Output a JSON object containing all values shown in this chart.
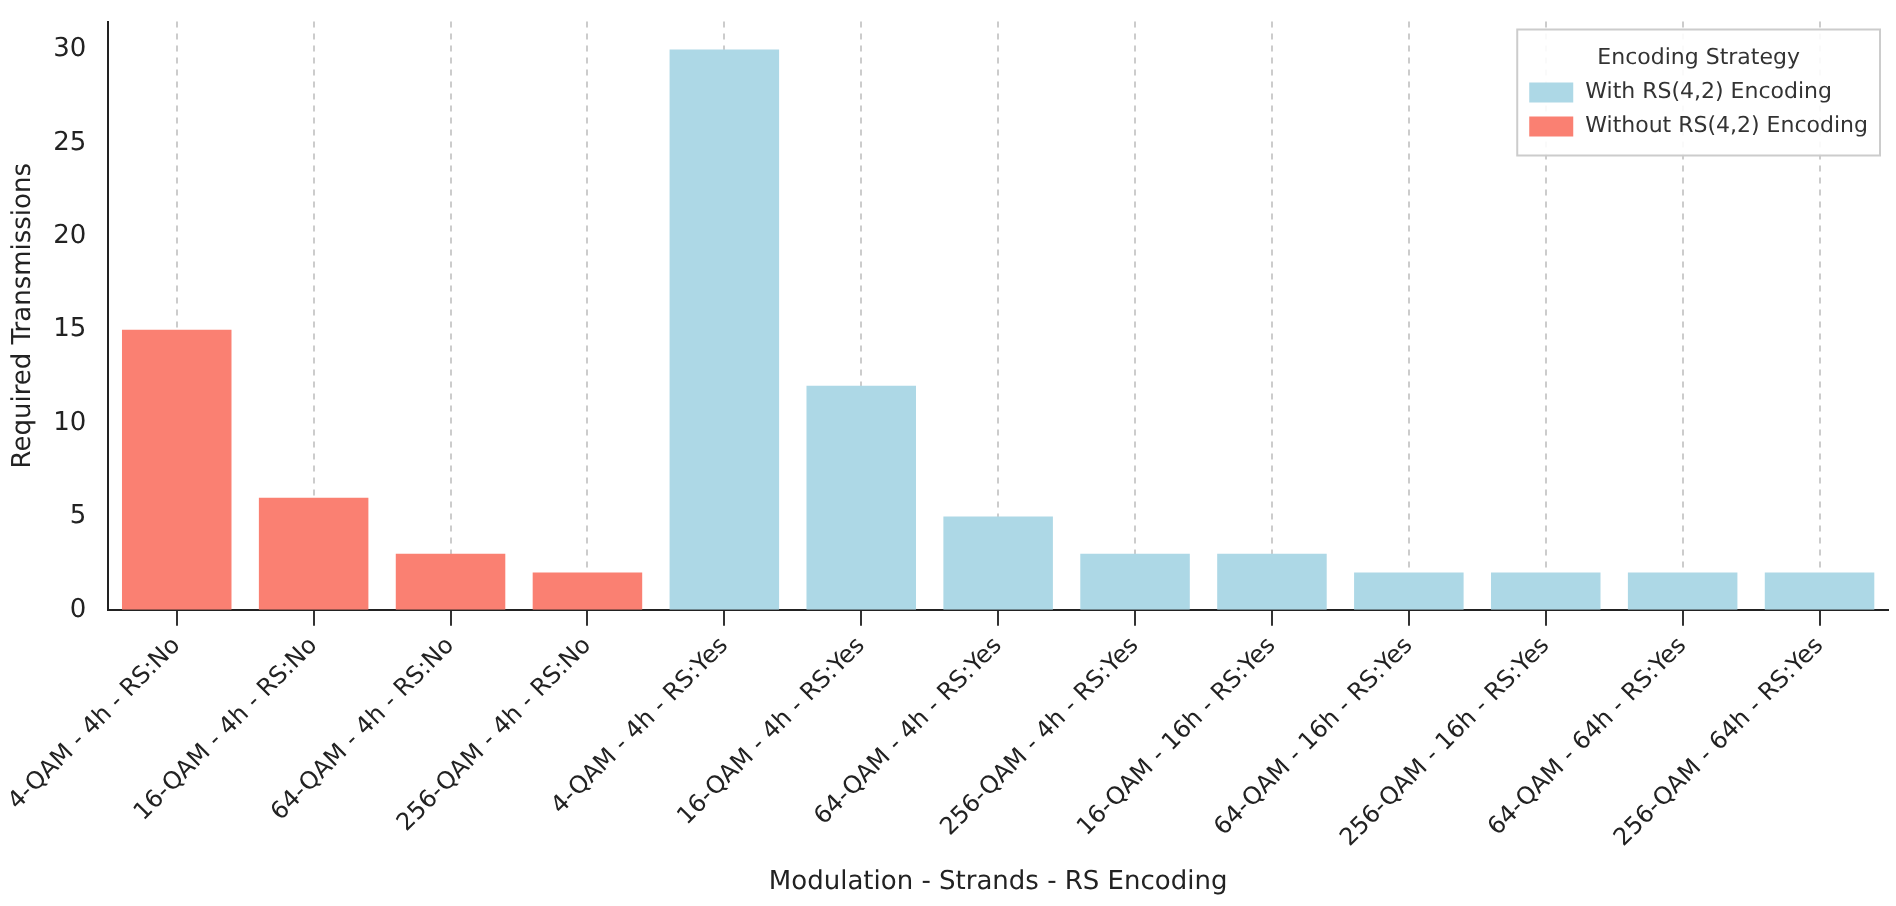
{
  "chart_data": {
    "type": "bar",
    "xlabel": "Modulation - Strands - RS Encoding",
    "ylabel": "Required Transmissions",
    "legend_title": "Encoding Strategy",
    "categories": [
      "4-QAM - 4h - RS:No",
      "16-QAM - 4h - RS:No",
      "64-QAM - 4h - RS:No",
      "256-QAM - 4h - RS:No",
      "4-QAM - 4h - RS:Yes",
      "16-QAM - 4h - RS:Yes",
      "64-QAM - 4h - RS:Yes",
      "256-QAM - 4h - RS:Yes",
      "16-QAM - 16h - RS:Yes",
      "64-QAM - 16h - RS:Yes",
      "256-QAM - 16h - RS:Yes",
      "64-QAM - 64h - RS:Yes",
      "256-QAM - 64h - RS:Yes"
    ],
    "series": [
      {
        "name": "With RS(4,2) Encoding",
        "color": "#add8e6",
        "values": [
          null,
          null,
          null,
          null,
          30,
          12,
          5,
          3,
          3,
          2,
          2,
          2,
          2
        ]
      },
      {
        "name": "Without RS(4,2) Encoding",
        "color": "#fa8072",
        "values": [
          15,
          6,
          3,
          2,
          null,
          null,
          null,
          null,
          null,
          null,
          null,
          null,
          null
        ]
      }
    ],
    "ylim": [
      0,
      31.5
    ],
    "yticks": [
      0,
      5,
      10,
      15,
      20,
      25,
      30
    ],
    "grid": "x",
    "legend": "top right"
  }
}
